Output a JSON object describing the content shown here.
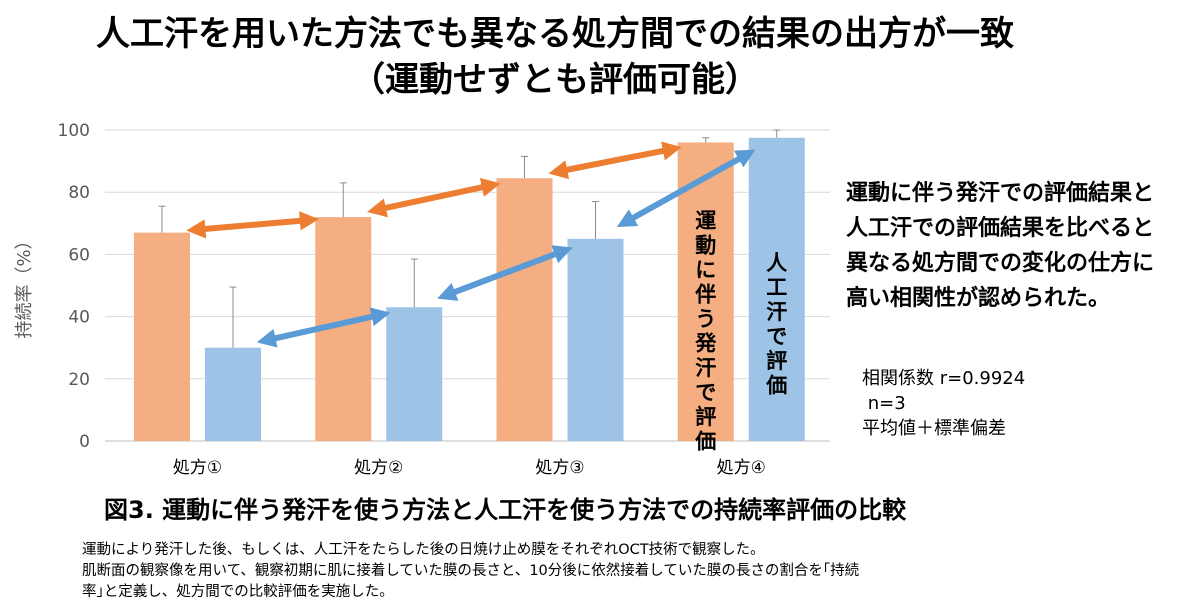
{
  "title": {
    "line1": "人工汗を用いた方法でも異なる処方間での結果の出方が一致",
    "line2": "（運動せずとも評価可能）"
  },
  "chart_data": {
    "type": "bar",
    "ylabel": "持続率（%）",
    "ylim": [
      0,
      100
    ],
    "yticks": [
      0,
      20,
      40,
      60,
      80,
      100
    ],
    "grid": true,
    "categories": [
      "処方①",
      "処方②",
      "処方③",
      "処方④"
    ],
    "series": [
      {
        "name": "運動に伴う発汗で評価",
        "color": "#f5ae82",
        "values": [
          67,
          72,
          84.5,
          96
        ],
        "errors": [
          8.5,
          11,
          7,
          1.5
        ]
      },
      {
        "name": "人工汗で評価",
        "color": "#9dc3e6",
        "values": [
          30,
          43,
          65,
          97.5
        ],
        "errors": [
          19.5,
          15.5,
          12,
          2.5
        ]
      }
    ],
    "arrow_colors": {
      "orange": "#ed7d31",
      "blue": "#5b9bd5"
    }
  },
  "side_text": [
    "運動に伴う発汗での評価結果と",
    "人工汗での評価結果を比べると",
    "異なる処方間での変化の仕方に",
    "高い相関性が認められた。"
  ],
  "stats": {
    "correlation": "相関係数 r=0.9924",
    "n": " n=3",
    "note": "平均値＋標準偏差"
  },
  "caption": "図3. 運動に伴う発汗を使う方法と人工汗を使う方法での持続率評価の比較",
  "description": [
    "運動により発汗した後、もしくは、人工汗をたらした後の日焼け止め膜をそれぞれOCT技術で観察した。",
    "肌断面の観察像を用いて、観察初期に肌に接着していた膜の長さと、10分後に依然接着していた膜の長さの割合を｢持続",
    "率｣と定義し、処方間での比較評価を実施した。"
  ]
}
